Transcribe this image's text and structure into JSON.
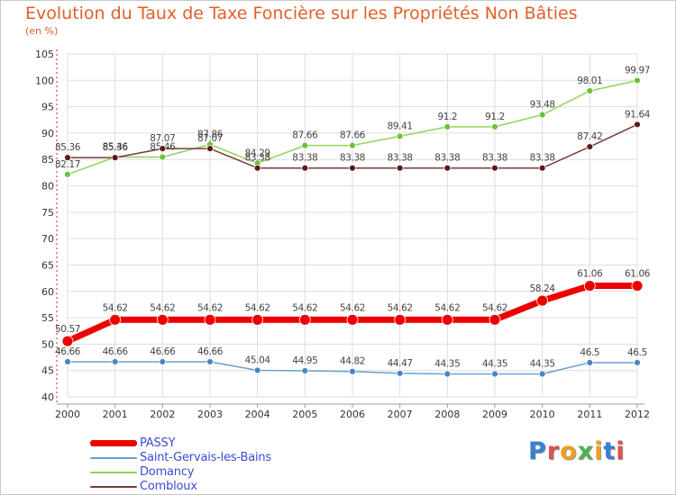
{
  "chart_data": {
    "type": "line",
    "title": "Evolution du Taux de Taxe Foncière sur les Propriétés Non Bâties",
    "ylabel": "(en %)",
    "xlabel": "",
    "categories": [
      "2000",
      "2001",
      "2002",
      "2003",
      "2004",
      "2005",
      "2006",
      "2007",
      "2008",
      "2009",
      "2010",
      "2011",
      "2012"
    ],
    "ylim": [
      40,
      105
    ],
    "yticks": [
      "40",
      "45",
      "50",
      "55",
      "60",
      "65",
      "70",
      "75",
      "80",
      "85",
      "90",
      "95",
      "100",
      "105"
    ],
    "series": [
      {
        "name": "Domancy",
        "color": "#8fd45a",
        "marker": "#6cc23a",
        "width": 1.5,
        "values": [
          82.17,
          85.46,
          85.46,
          87.86,
          84.29,
          87.66,
          87.66,
          89.41,
          91.2,
          91.2,
          93.48,
          98.01,
          99.97
        ],
        "labels": [
          "82.17",
          "85.46",
          "85.46",
          "87.86",
          "84.29",
          "87.66",
          "87.66",
          "89.41",
          "91.2",
          "91.2",
          "93.48",
          "98.01",
          "99.97"
        ]
      },
      {
        "name": "Combloux",
        "color": "#7a3a3a",
        "marker": "#5a1a1a",
        "width": 1.5,
        "values": [
          85.36,
          85.36,
          87.07,
          87.07,
          83.38,
          83.38,
          83.38,
          83.38,
          83.38,
          83.38,
          83.38,
          87.42,
          91.64
        ],
        "labels": [
          "85.36",
          "85.36",
          "87.07",
          "87.07",
          "83.38",
          "83.38",
          "83.38",
          "83.38",
          "83.38",
          "83.38",
          "83.38",
          "87.42",
          "91.64"
        ]
      },
      {
        "name": "Saint-Gervais-les-Bains",
        "color": "#6a9fcf",
        "marker": "#4a86c4",
        "width": 1.5,
        "values": [
          46.66,
          46.66,
          46.66,
          46.66,
          45.04,
          44.95,
          44.82,
          44.47,
          44.35,
          44.35,
          44.35,
          46.5,
          46.5
        ],
        "labels": [
          "46.66",
          "46.66",
          "46.66",
          "46.66",
          "45.04",
          "44.95",
          "44.82",
          "44.47",
          "44.35",
          "44.35",
          "44.35",
          "46.5",
          "46.5"
        ]
      },
      {
        "name": "PASSY",
        "color": "#ee0000",
        "marker": "#ee0000",
        "width": 7,
        "values": [
          50.57,
          54.62,
          54.62,
          54.62,
          54.62,
          54.62,
          54.62,
          54.62,
          54.62,
          54.62,
          58.24,
          61.06,
          61.06
        ],
        "labels": [
          "50.57",
          "54.62",
          "54.62",
          "54.62",
          "54.62",
          "54.62",
          "54.62",
          "54.62",
          "54.62",
          "54.62",
          "58.24",
          "61.06",
          "61.06"
        ]
      }
    ],
    "legend": [
      {
        "name": "PASSY",
        "color": "#ee0000"
      },
      {
        "name": "Saint-Gervais-les-Bains",
        "color": "#6a9fcf"
      },
      {
        "name": "Domancy",
        "color": "#8fd45a"
      },
      {
        "name": "Combloux",
        "color": "#7a3a3a"
      }
    ],
    "legend_position": "bottom-left",
    "grid": true
  },
  "logo": {
    "text": "Proxiti"
  }
}
